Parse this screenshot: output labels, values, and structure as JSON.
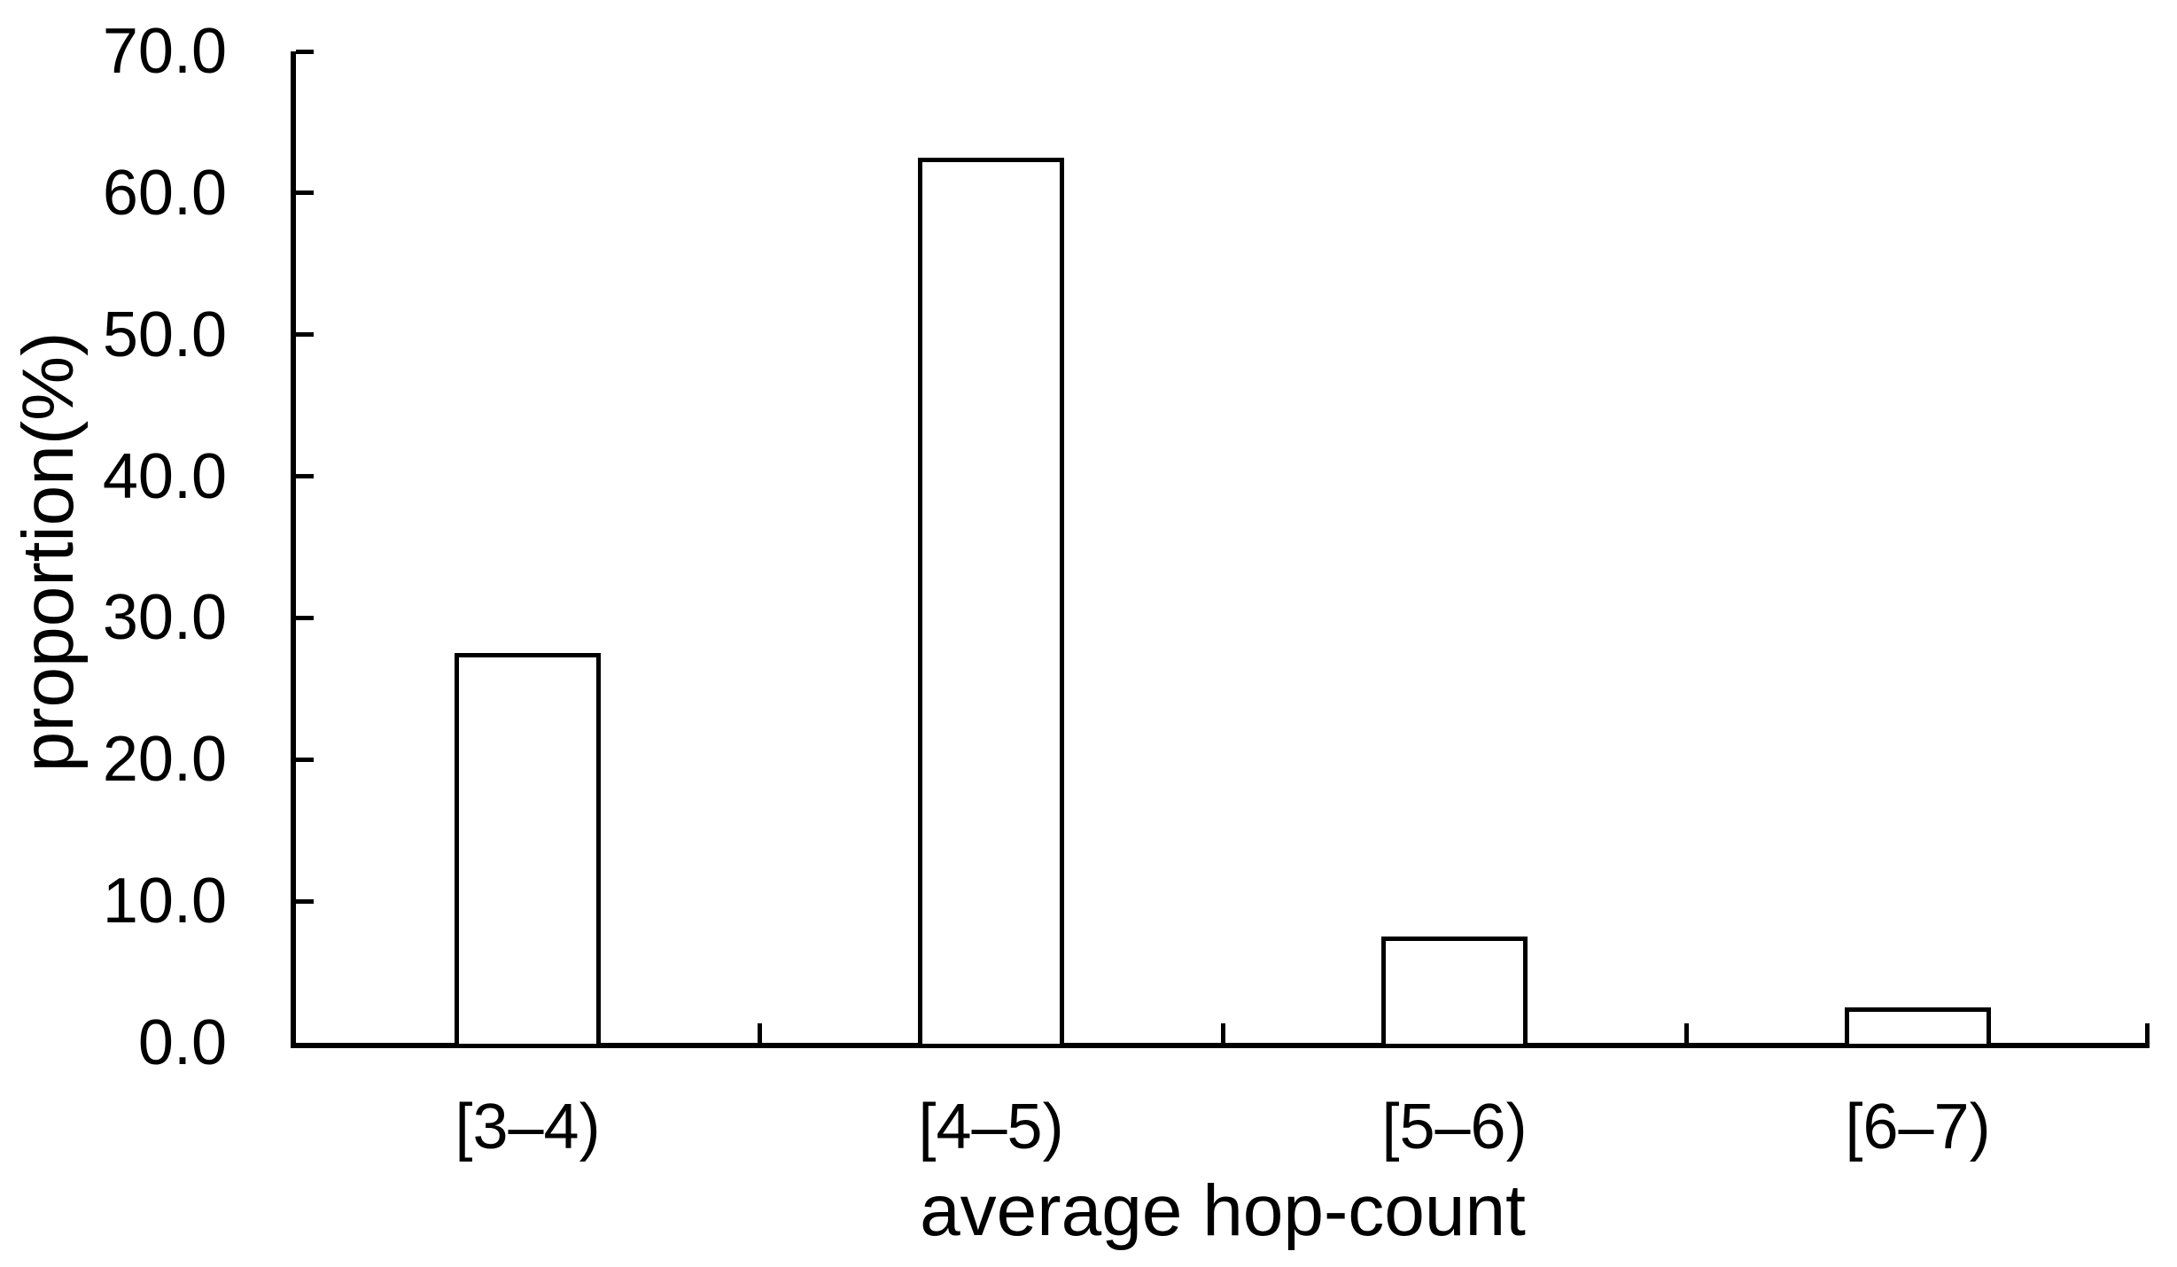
{
  "chart_data": {
    "type": "bar",
    "title": "",
    "categories": [
      "[3–4)",
      "[4–5)",
      "[5–6)",
      "[6–7)"
    ],
    "values": [
      27.5,
      62.5,
      7.5,
      2.5
    ],
    "xlabel": "average hop-count",
    "ylabel": "proportion(%)",
    "ylim": [
      0,
      70
    ],
    "ytick_step": 10,
    "ytick_labels": [
      "0.0",
      "10.0",
      "20.0",
      "30.0",
      "40.0",
      "50.0",
      "60.0",
      "70.0"
    ],
    "grid": false,
    "legend": "none",
    "tick_style": "inside",
    "bar_fill_color": "#ffffff",
    "line_color": "#000000",
    "text_color": "#000000"
  }
}
